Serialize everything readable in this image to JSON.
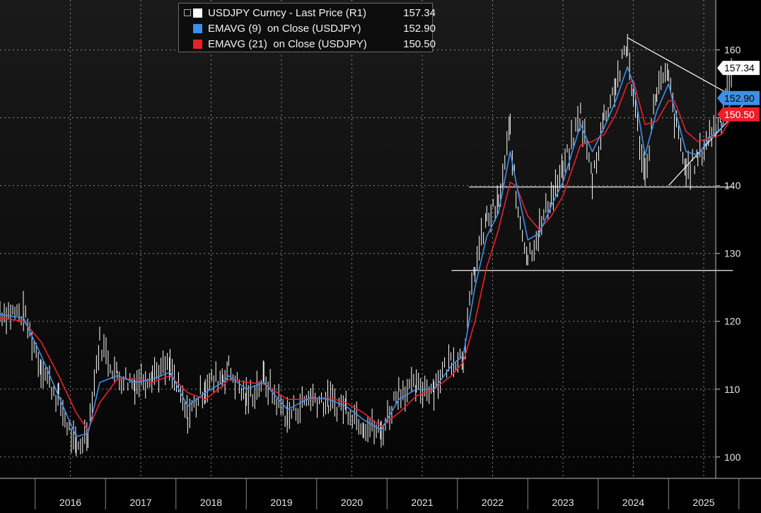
{
  "chart_data": {
    "type": "line",
    "title": "",
    "xlabel": "",
    "ylabel": "",
    "y_axis_side": "right",
    "ylim": [
      98,
      166
    ],
    "xlim": [
      "2015-07",
      "2025-12"
    ],
    "grid": true,
    "legend_position": "top-left",
    "year_labels": [
      "2016",
      "2017",
      "2018",
      "2019",
      "2020",
      "2021",
      "2022",
      "2023",
      "2024",
      "2025"
    ],
    "y_ticks": [
      100,
      110,
      120,
      130,
      140,
      150,
      160
    ],
    "y_tick_labels": [
      "100",
      "110",
      "120",
      "130",
      "140",
      "150",
      "160"
    ],
    "series": [
      {
        "name": "USDJPY Curncy - Last Price (R1)",
        "last_value": "157.34",
        "color": "#ffffff",
        "style": "hi-lo bars",
        "points": [
          [
            "2015-07",
            121.5
          ],
          [
            "2015-11",
            121.0
          ],
          [
            "2016-02",
            113.5
          ],
          [
            "2016-05",
            108.5
          ],
          [
            "2016-08",
            101.0
          ],
          [
            "2016-10",
            104.0
          ],
          [
            "2016-12",
            117.0
          ],
          [
            "2017-03",
            112.0
          ],
          [
            "2017-06",
            111.0
          ],
          [
            "2017-09",
            112.5
          ],
          [
            "2017-12",
            113.0
          ],
          [
            "2018-03",
            106.0
          ],
          [
            "2018-06",
            110.5
          ],
          [
            "2018-09",
            112.0
          ],
          [
            "2018-10",
            113.0
          ],
          [
            "2019-01",
            108.5
          ],
          [
            "2019-04",
            111.5
          ],
          [
            "2019-08",
            106.0
          ],
          [
            "2019-12",
            109.0
          ],
          [
            "2020-03",
            108.0
          ],
          [
            "2020-06",
            107.5
          ],
          [
            "2020-09",
            105.0
          ],
          [
            "2020-12",
            103.5
          ],
          [
            "2021-03",
            110.0
          ],
          [
            "2021-06",
            110.0
          ],
          [
            "2021-09",
            110.5
          ],
          [
            "2021-12",
            114.5
          ],
          [
            "2022-02",
            115.0
          ],
          [
            "2022-04",
            128.0
          ],
          [
            "2022-06",
            135.0
          ],
          [
            "2022-08",
            137.0
          ],
          [
            "2022-10",
            148.5
          ],
          [
            "2022-11",
            138.0
          ],
          [
            "2023-01",
            129.5
          ],
          [
            "2023-03",
            133.5
          ],
          [
            "2023-05",
            138.5
          ],
          [
            "2023-07",
            142.0
          ],
          [
            "2023-10",
            150.5
          ],
          [
            "2023-12",
            141.0
          ],
          [
            "2024-02",
            150.0
          ],
          [
            "2024-04",
            155.0
          ],
          [
            "2024-06",
            160.5
          ],
          [
            "2024-07",
            153.0
          ],
          [
            "2024-09",
            141.5
          ],
          [
            "2024-11",
            154.5
          ],
          [
            "2025-01",
            156.0
          ],
          [
            "2025-02",
            150.0
          ],
          [
            "2025-04",
            142.0
          ],
          [
            "2025-06",
            144.0
          ],
          [
            "2025-08",
            147.5
          ],
          [
            "2025-10",
            150.0
          ],
          [
            "2025-11",
            155.0
          ],
          [
            "2025-12",
            157.34
          ]
        ]
      },
      {
        "name": "EMAVG (9)  on Close (USDJPY)",
        "last_value": "152.90",
        "color": "#3f8fe8",
        "points": [
          [
            "2015-07",
            121.0
          ],
          [
            "2015-11",
            120.5
          ],
          [
            "2016-02",
            115.0
          ],
          [
            "2016-05",
            109.0
          ],
          [
            "2016-08",
            103.0
          ],
          [
            "2016-10",
            103.5
          ],
          [
            "2016-12",
            111.0
          ],
          [
            "2017-03",
            112.0
          ],
          [
            "2017-06",
            111.0
          ],
          [
            "2017-09",
            111.5
          ],
          [
            "2017-12",
            112.5
          ],
          [
            "2018-03",
            107.5
          ],
          [
            "2018-06",
            109.5
          ],
          [
            "2018-09",
            111.0
          ],
          [
            "2018-10",
            112.0
          ],
          [
            "2019-01",
            110.0
          ],
          [
            "2019-04",
            111.0
          ],
          [
            "2019-08",
            107.0
          ],
          [
            "2019-12",
            108.8
          ],
          [
            "2020-03",
            108.5
          ],
          [
            "2020-06",
            107.5
          ],
          [
            "2020-09",
            105.5
          ],
          [
            "2020-12",
            104.0
          ],
          [
            "2021-03",
            108.5
          ],
          [
            "2021-06",
            110.0
          ],
          [
            "2021-09",
            110.0
          ],
          [
            "2021-12",
            113.5
          ],
          [
            "2022-02",
            115.0
          ],
          [
            "2022-04",
            125.0
          ],
          [
            "2022-06",
            132.5
          ],
          [
            "2022-08",
            136.0
          ],
          [
            "2022-10",
            145.0
          ],
          [
            "2022-11",
            140.5
          ],
          [
            "2023-01",
            132.0
          ],
          [
            "2023-03",
            133.0
          ],
          [
            "2023-05",
            137.0
          ],
          [
            "2023-07",
            140.5
          ],
          [
            "2023-10",
            149.0
          ],
          [
            "2023-12",
            145.0
          ],
          [
            "2024-02",
            148.5
          ],
          [
            "2024-04",
            152.5
          ],
          [
            "2024-06",
            157.5
          ],
          [
            "2024-07",
            155.0
          ],
          [
            "2024-09",
            144.5
          ],
          [
            "2024-11",
            151.0
          ],
          [
            "2025-01",
            155.0
          ],
          [
            "2025-02",
            151.5
          ],
          [
            "2025-04",
            145.0
          ],
          [
            "2025-06",
            144.5
          ],
          [
            "2025-08",
            147.0
          ],
          [
            "2025-10",
            148.5
          ],
          [
            "2025-11",
            151.0
          ],
          [
            "2025-12",
            152.9
          ]
        ]
      },
      {
        "name": "EMAVG (21)  on Close (USDJPY)",
        "last_value": "150.50",
        "color": "#e8202a",
        "points": [
          [
            "2015-07",
            120.5
          ],
          [
            "2015-11",
            120.0
          ],
          [
            "2016-02",
            117.0
          ],
          [
            "2016-05",
            112.0
          ],
          [
            "2016-08",
            106.5
          ],
          [
            "2016-10",
            104.0
          ],
          [
            "2016-12",
            108.0
          ],
          [
            "2017-03",
            111.5
          ],
          [
            "2017-06",
            111.5
          ],
          [
            "2017-09",
            111.0
          ],
          [
            "2017-12",
            112.0
          ],
          [
            "2018-03",
            109.5
          ],
          [
            "2018-06",
            108.5
          ],
          [
            "2018-09",
            110.5
          ],
          [
            "2018-10",
            111.5
          ],
          [
            "2019-01",
            111.0
          ],
          [
            "2019-04",
            110.8
          ],
          [
            "2019-08",
            108.5
          ],
          [
            "2019-12",
            108.5
          ],
          [
            "2020-03",
            108.8
          ],
          [
            "2020-06",
            108.0
          ],
          [
            "2020-09",
            106.5
          ],
          [
            "2020-12",
            104.5
          ],
          [
            "2021-03",
            106.5
          ],
          [
            "2021-06",
            109.0
          ],
          [
            "2021-09",
            110.0
          ],
          [
            "2021-12",
            112.0
          ],
          [
            "2022-02",
            114.0
          ],
          [
            "2022-04",
            120.0
          ],
          [
            "2022-06",
            128.0
          ],
          [
            "2022-08",
            133.5
          ],
          [
            "2022-10",
            140.5
          ],
          [
            "2022-11",
            140.0
          ],
          [
            "2023-01",
            135.5
          ],
          [
            "2023-03",
            133.5
          ],
          [
            "2023-05",
            135.5
          ],
          [
            "2023-07",
            138.5
          ],
          [
            "2023-10",
            146.0
          ],
          [
            "2023-12",
            146.5
          ],
          [
            "2024-02",
            147.5
          ],
          [
            "2024-04",
            150.5
          ],
          [
            "2024-06",
            155.0
          ],
          [
            "2024-07",
            155.5
          ],
          [
            "2024-09",
            149.0
          ],
          [
            "2024-11",
            149.5
          ],
          [
            "2025-01",
            152.5
          ],
          [
            "2025-02",
            152.5
          ],
          [
            "2025-04",
            148.0
          ],
          [
            "2025-06",
            146.5
          ],
          [
            "2025-08",
            147.0
          ],
          [
            "2025-10",
            147.5
          ],
          [
            "2025-11",
            149.0
          ],
          [
            "2025-12",
            150.5
          ]
        ]
      }
    ],
    "annotations": [
      {
        "kind": "horizontal-line",
        "y": 139.8,
        "x_from": "2022-03",
        "x_to": "2025-12"
      },
      {
        "kind": "horizontal-line",
        "y": 127.5,
        "x_from": "2021-12",
        "x_to": "2025-12"
      },
      {
        "kind": "trend-line",
        "from": [
          "2024-06",
          161.8
        ],
        "to": [
          "2025-11",
          154.0
        ],
        "extend_to": [
          "2026-02",
          152.2
        ]
      },
      {
        "kind": "trend-line",
        "from": [
          "2025-01",
          140.0
        ],
        "to": [
          "2026-02",
          152.2
        ]
      }
    ],
    "price_tags": [
      {
        "value": "157.34",
        "bg": "#ffffff",
        "fg": "#000000"
      },
      {
        "value": "152.90",
        "bg": "#3f8fe8",
        "fg": "#000000"
      },
      {
        "value": "150.50",
        "bg": "#e8202a",
        "fg": "#ffffff"
      }
    ]
  }
}
